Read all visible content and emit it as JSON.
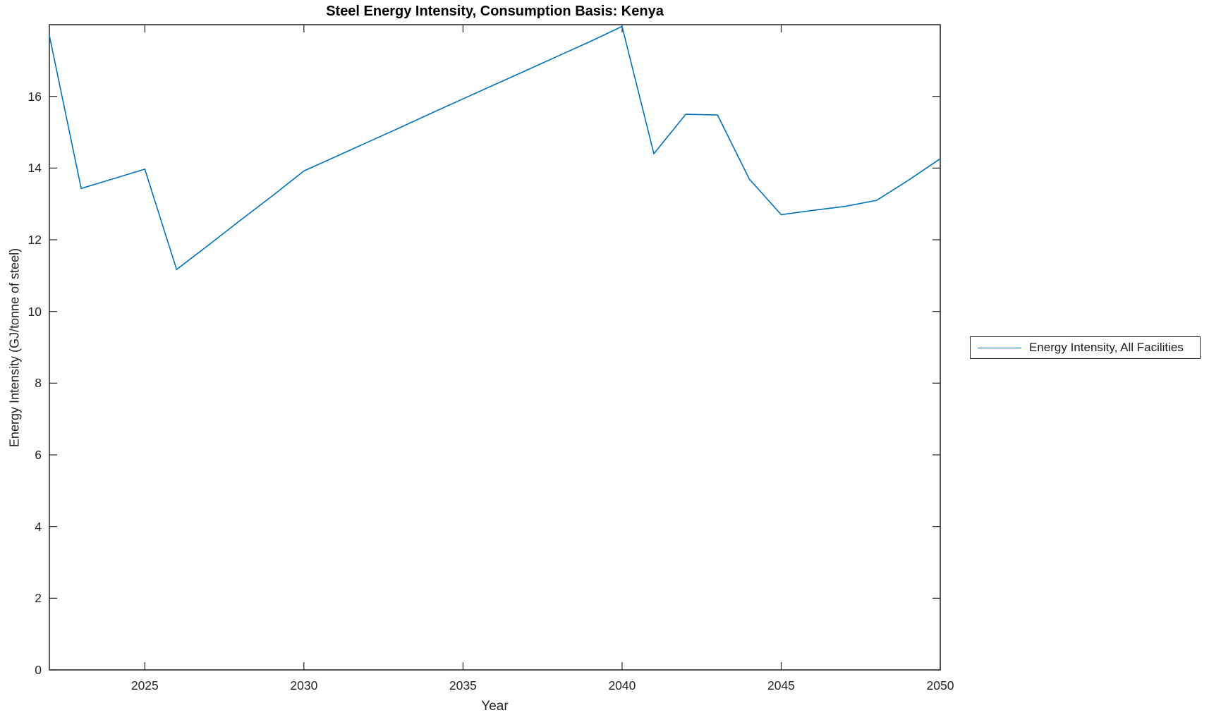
{
  "figure": {
    "background": "#ffffff",
    "axis_color": "#262626",
    "line_color": "#0072BD"
  },
  "chart_data": {
    "type": "line",
    "title": "Steel Energy Intensity, Consumption Basis: Kenya",
    "xlabel": "Year",
    "ylabel": "Energy Intensity (GJ/tonne of steel)",
    "xlim": [
      2022,
      2050
    ],
    "ylim": [
      0,
      18
    ],
    "xticks": [
      2025,
      2030,
      2035,
      2040,
      2045,
      2050
    ],
    "yticks": [
      0,
      2,
      4,
      6,
      8,
      10,
      12,
      14,
      16
    ],
    "grid": false,
    "box": true,
    "legend": {
      "position": "outside-right",
      "entries": [
        {
          "label": "Energy Intensity, All Facilities",
          "color": "#0072BD"
        }
      ]
    },
    "series": [
      {
        "name": "Energy Intensity, All Facilities",
        "color": "#0072BD",
        "x": [
          2022,
          2023,
          2024,
          2025,
          2026,
          2027,
          2028,
          2029,
          2030,
          2031,
          2032,
          2033,
          2034,
          2035,
          2036,
          2037,
          2038,
          2039,
          2040,
          2041,
          2042,
          2043,
          2044,
          2045,
          2046,
          2047,
          2048,
          2049,
          2050
        ],
        "y": [
          17.7,
          13.43,
          13.7,
          13.97,
          11.17,
          11.85,
          12.54,
          13.22,
          13.92,
          14.32,
          14.72,
          15.12,
          15.53,
          15.93,
          16.33,
          16.73,
          17.13,
          17.53,
          17.95,
          14.4,
          15.5,
          15.48,
          13.69,
          12.7,
          12.82,
          12.93,
          13.1,
          13.66,
          14.26
        ]
      }
    ]
  }
}
